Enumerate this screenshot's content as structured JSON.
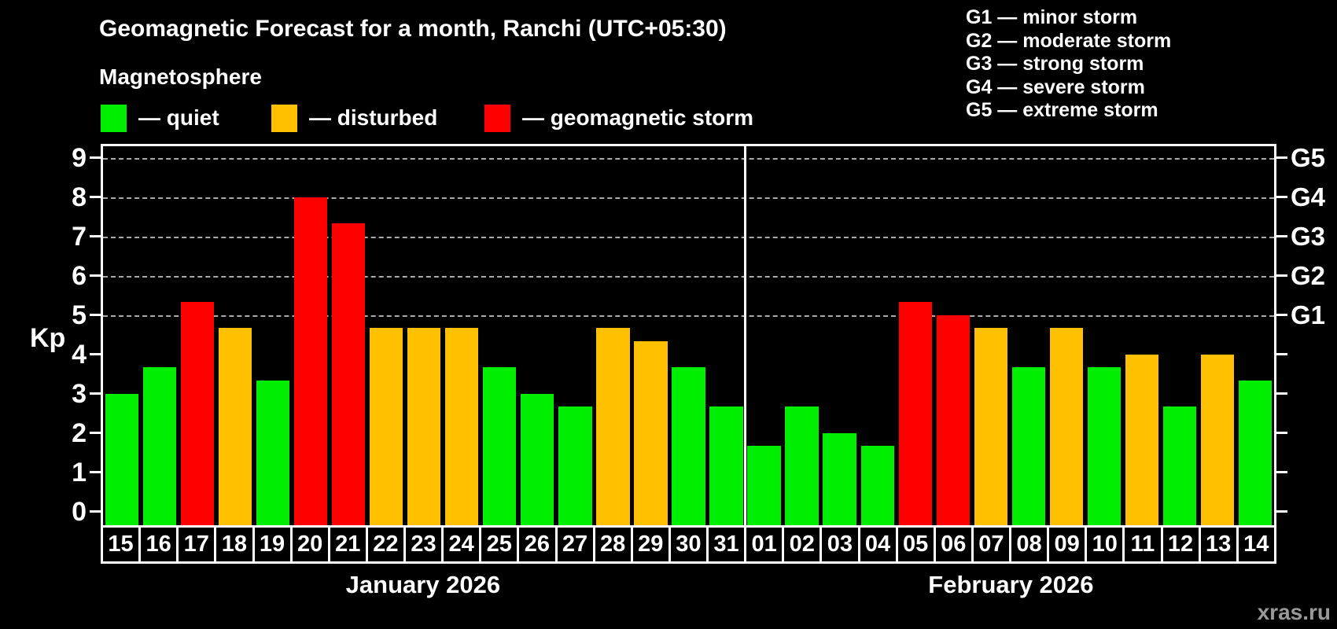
{
  "header": {
    "title": "Geomagnetic Forecast for a month, Ranchi (UTC+05:30)",
    "subtitle": "Magnetosphere",
    "watermark": "xras.ru"
  },
  "legend": {
    "quiet_label": "— quiet",
    "disturbed_label": "— disturbed",
    "storm_label": "— geomagnetic storm"
  },
  "g_legend": [
    "G1 — minor storm",
    "G2 — moderate storm",
    "G3 — strong storm",
    "G4 — severe storm",
    "G5 — extreme storm"
  ],
  "colors": {
    "quiet": "#00ee00",
    "disturbed": "#ffc000",
    "storm": "#ff0000",
    "grid": "#aaaaaa",
    "axis": "#ffffff",
    "background": "#000000",
    "watermark": "#999999"
  },
  "chart_data": {
    "type": "bar",
    "title": "Geomagnetic Forecast for a month, Ranchi (UTC+05:30)",
    "subtitle": "Magnetosphere",
    "ylabel": "Kp",
    "ylim": [
      0,
      9
    ],
    "y_ticks": [
      0,
      1,
      2,
      3,
      4,
      5,
      6,
      7,
      8,
      9
    ],
    "grid": "horizontal dashed lines at G-storm levels Kp 5–9",
    "legend_position": "top-left",
    "g_scale": [
      {
        "kp": 5,
        "label": "G1"
      },
      {
        "kp": 6,
        "label": "G2"
      },
      {
        "kp": 7,
        "label": "G3"
      },
      {
        "kp": 8,
        "label": "G4"
      },
      {
        "kp": 9,
        "label": "G5"
      }
    ],
    "months": [
      {
        "label": "January 2026",
        "bars": [
          {
            "day": "15",
            "kp": 3.0,
            "condition": "quiet"
          },
          {
            "day": "16",
            "kp": 3.67,
            "condition": "quiet"
          },
          {
            "day": "17",
            "kp": 5.33,
            "condition": "storm"
          },
          {
            "day": "18",
            "kp": 4.67,
            "condition": "disturbed"
          },
          {
            "day": "19",
            "kp": 3.33,
            "condition": "quiet"
          },
          {
            "day": "20",
            "kp": 8.0,
            "condition": "storm"
          },
          {
            "day": "21",
            "kp": 7.33,
            "condition": "storm"
          },
          {
            "day": "22",
            "kp": 4.67,
            "condition": "disturbed"
          },
          {
            "day": "23",
            "kp": 4.67,
            "condition": "disturbed"
          },
          {
            "day": "24",
            "kp": 4.67,
            "condition": "disturbed"
          },
          {
            "day": "25",
            "kp": 3.67,
            "condition": "quiet"
          },
          {
            "day": "26",
            "kp": 3.0,
            "condition": "quiet"
          },
          {
            "day": "27",
            "kp": 2.67,
            "condition": "quiet"
          },
          {
            "day": "28",
            "kp": 4.67,
            "condition": "disturbed"
          },
          {
            "day": "29",
            "kp": 4.33,
            "condition": "disturbed"
          },
          {
            "day": "30",
            "kp": 3.67,
            "condition": "quiet"
          },
          {
            "day": "31",
            "kp": 2.67,
            "condition": "quiet"
          }
        ]
      },
      {
        "label": "February 2026",
        "bars": [
          {
            "day": "01",
            "kp": 1.67,
            "condition": "quiet"
          },
          {
            "day": "02",
            "kp": 2.67,
            "condition": "quiet"
          },
          {
            "day": "03",
            "kp": 2.0,
            "condition": "quiet"
          },
          {
            "day": "04",
            "kp": 1.67,
            "condition": "quiet"
          },
          {
            "day": "05",
            "kp": 5.33,
            "condition": "storm"
          },
          {
            "day": "06",
            "kp": 5.0,
            "condition": "storm"
          },
          {
            "day": "07",
            "kp": 4.67,
            "condition": "disturbed"
          },
          {
            "day": "08",
            "kp": 3.67,
            "condition": "quiet"
          },
          {
            "day": "09",
            "kp": 4.67,
            "condition": "disturbed"
          },
          {
            "day": "10",
            "kp": 3.67,
            "condition": "quiet"
          },
          {
            "day": "11",
            "kp": 4.0,
            "condition": "disturbed"
          },
          {
            "day": "12",
            "kp": 2.67,
            "condition": "quiet"
          },
          {
            "day": "13",
            "kp": 4.0,
            "condition": "disturbed"
          },
          {
            "day": "14",
            "kp": 3.33,
            "condition": "quiet"
          }
        ]
      }
    ]
  }
}
